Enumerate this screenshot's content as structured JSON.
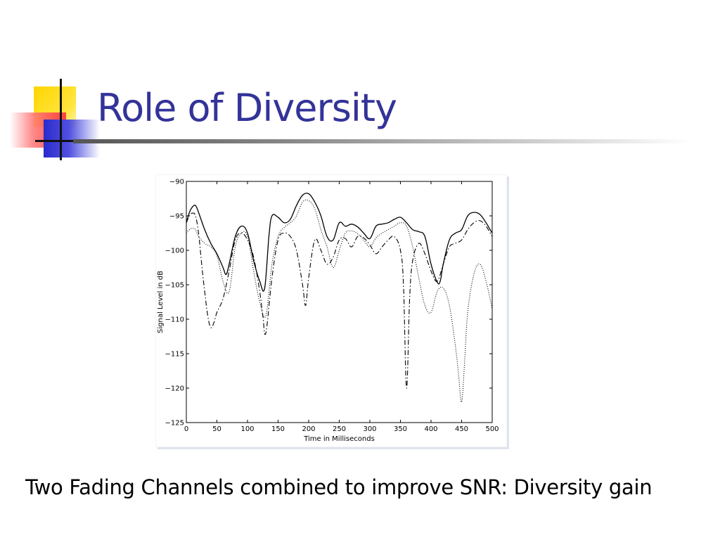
{
  "slide": {
    "title": "Role of Diversity",
    "caption": "Two Fading Channels combined to improve SNR: Diversity gain",
    "title_color": "#333399",
    "logo_colors": {
      "yellow": "#ffd400",
      "red": "#ff4040",
      "blue": "#2b2bcc"
    }
  },
  "chart_data": {
    "type": "line",
    "title": "",
    "xlabel": "Time in Milliseconds",
    "ylabel": "Signal Level in dB",
    "xlim": [
      0,
      500
    ],
    "ylim": [
      -125,
      -90
    ],
    "xticks": [
      0,
      50,
      100,
      150,
      200,
      250,
      300,
      350,
      400,
      450,
      500
    ],
    "yticks": [
      -90,
      -95,
      -100,
      -105,
      -110,
      -115,
      -120,
      -125
    ],
    "xtick_labels": [
      "0",
      "50",
      "100",
      "150",
      "200",
      "250",
      "300",
      "350",
      "400",
      "450",
      "500"
    ],
    "ytick_labels": [
      "−90",
      "−95",
      "−100",
      "−105",
      "−110",
      "−115",
      "−120",
      "−125"
    ],
    "grid": false,
    "legend": "none",
    "series": [
      {
        "style": "solid",
        "x": [
          0,
          5,
          10,
          15,
          20,
          30,
          40,
          50,
          60,
          65,
          70,
          80,
          90,
          100,
          110,
          120,
          128,
          135,
          140,
          150,
          160,
          170,
          180,
          190,
          200,
          210,
          220,
          230,
          240,
          250,
          260,
          270,
          280,
          290,
          300,
          310,
          320,
          330,
          340,
          350,
          360,
          370,
          380,
          390,
          400,
          410,
          415,
          420,
          430,
          440,
          450,
          460,
          470,
          480,
          490,
          500
        ],
        "y": [
          -96,
          -94.5,
          -93.7,
          -93.5,
          -94.5,
          -97,
          -99,
          -100.5,
          -102.5,
          -103.5,
          -102,
          -98,
          -96.5,
          -97.5,
          -101.5,
          -104.5,
          -105.5,
          -98,
          -95,
          -95.2,
          -96,
          -95.5,
          -93.5,
          -92,
          -91.8,
          -93,
          -95,
          -98,
          -98.5,
          -96,
          -96.5,
          -96.2,
          -96.6,
          -97.5,
          -98.3,
          -96.5,
          -96.2,
          -96,
          -95.5,
          -95.2,
          -96,
          -97,
          -97.3,
          -98,
          -102,
          -104.6,
          -104.5,
          -102,
          -98.5,
          -97.5,
          -97,
          -95,
          -94.5,
          -94.8,
          -96,
          -97.5
        ]
      },
      {
        "style": "dash-dot",
        "x": [
          0,
          5,
          10,
          15,
          20,
          25,
          30,
          35,
          40,
          45,
          50,
          60,
          70,
          80,
          90,
          100,
          110,
          120,
          125,
          130,
          140,
          150,
          160,
          170,
          180,
          190,
          195,
          200,
          210,
          220,
          230,
          240,
          250,
          260,
          270,
          280,
          290,
          300,
          310,
          320,
          330,
          340,
          350,
          355,
          360,
          365,
          370,
          380,
          390,
          400,
          410,
          420,
          430,
          440,
          450,
          460,
          470,
          480,
          490,
          500
        ],
        "y": [
          -96,
          -95,
          -94.6,
          -95,
          -97.5,
          -102,
          -106,
          -109.5,
          -111.2,
          -110.5,
          -109,
          -107,
          -103,
          -98.5,
          -97.5,
          -98.5,
          -101,
          -106,
          -109.5,
          -112,
          -104,
          -98.5,
          -97.5,
          -98,
          -100,
          -105,
          -108,
          -104,
          -98.5,
          -100,
          -102,
          -101,
          -98.5,
          -98.3,
          -99.5,
          -98,
          -98.2,
          -99.2,
          -100.5,
          -99.5,
          -98.5,
          -98,
          -100,
          -105,
          -120,
          -107,
          -101.5,
          -99,
          -100.5,
          -103,
          -104.5,
          -102,
          -99.5,
          -99,
          -98.5,
          -97,
          -96,
          -95.7,
          -96.5,
          -98
        ]
      },
      {
        "style": "dotted",
        "x": [
          0,
          5,
          10,
          15,
          20,
          30,
          40,
          50,
          60,
          70,
          80,
          90,
          100,
          110,
          120,
          130,
          140,
          150,
          160,
          170,
          180,
          190,
          200,
          210,
          220,
          230,
          240,
          250,
          260,
          270,
          280,
          290,
          300,
          310,
          320,
          330,
          340,
          350,
          360,
          370,
          380,
          390,
          400,
          410,
          420,
          430,
          440,
          445,
          450,
          455,
          460,
          470,
          480,
          490,
          500
        ],
        "y": [
          -97.5,
          -97,
          -96.8,
          -97,
          -98,
          -99,
          -99.5,
          -100.8,
          -104.5,
          -106,
          -99.5,
          -97.5,
          -98,
          -103,
          -107.5,
          -109.5,
          -102,
          -98,
          -96.7,
          -96,
          -95,
          -93,
          -92.8,
          -94,
          -97,
          -99.5,
          -102.5,
          -100,
          -97.5,
          -97.2,
          -97.6,
          -98.5,
          -99.5,
          -98.2,
          -97.5,
          -97,
          -96.5,
          -96,
          -96.5,
          -99.5,
          -104,
          -108,
          -109,
          -106,
          -105.5,
          -108,
          -114,
          -118,
          -122,
          -116,
          -109,
          -103.5,
          -102,
          -104.5,
          -108.5
        ]
      }
    ]
  }
}
